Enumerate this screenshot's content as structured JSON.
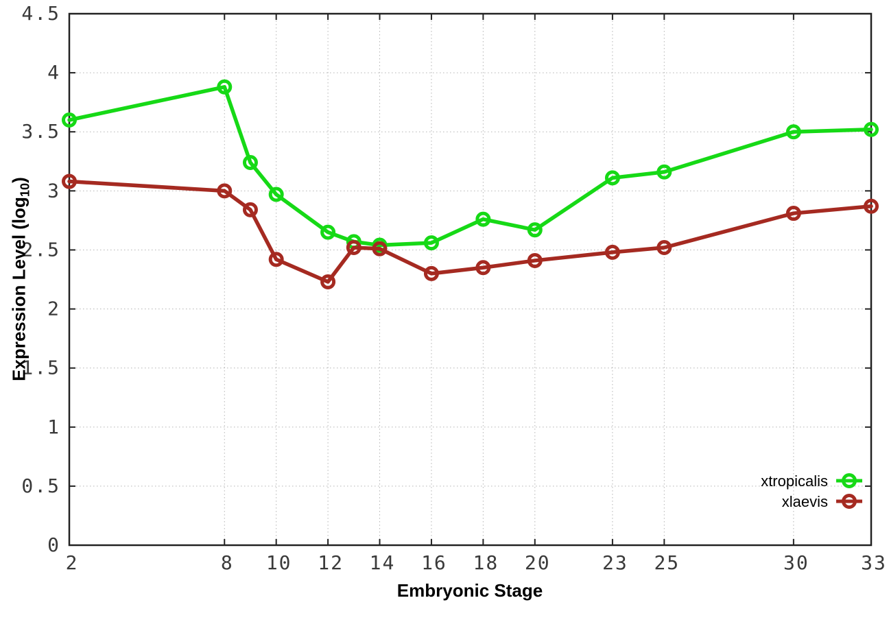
{
  "chart_data": {
    "type": "line",
    "title": "",
    "xlabel": "Embryonic Stage",
    "ylabel": {
      "prefix": "Expression Level (log",
      "sub": "10",
      "suffix": ")"
    },
    "x": [
      2,
      8,
      9,
      10,
      12,
      13,
      14,
      16,
      18,
      20,
      23,
      25,
      30,
      33
    ],
    "xticks": [
      2,
      8,
      10,
      12,
      14,
      16,
      18,
      20,
      23,
      25,
      30,
      33
    ],
    "yticks": [
      0,
      0.5,
      1,
      1.5,
      2,
      2.5,
      3,
      3.5,
      4,
      4.5
    ],
    "xlim": [
      2,
      33
    ],
    "ylim": [
      0,
      4.5
    ],
    "grid": true,
    "legend_position": "bottom-right",
    "series": [
      {
        "name": "xtropicalis",
        "color": "#16d916",
        "values": [
          3.6,
          3.88,
          3.24,
          2.97,
          2.65,
          2.57,
          2.54,
          2.56,
          2.76,
          2.67,
          3.11,
          3.16,
          3.5,
          3.52
        ]
      },
      {
        "name": "xlaevis",
        "color": "#a52a21",
        "values": [
          3.08,
          3.0,
          2.84,
          2.42,
          2.23,
          2.52,
          2.51,
          2.3,
          2.35,
          2.41,
          2.48,
          2.52,
          2.81,
          2.87
        ]
      }
    ],
    "style": {
      "background": "#ffffff",
      "border_color": "#222222",
      "grid_color": "#b3b3b3",
      "tick_label_color": "#3a3a3a"
    }
  }
}
